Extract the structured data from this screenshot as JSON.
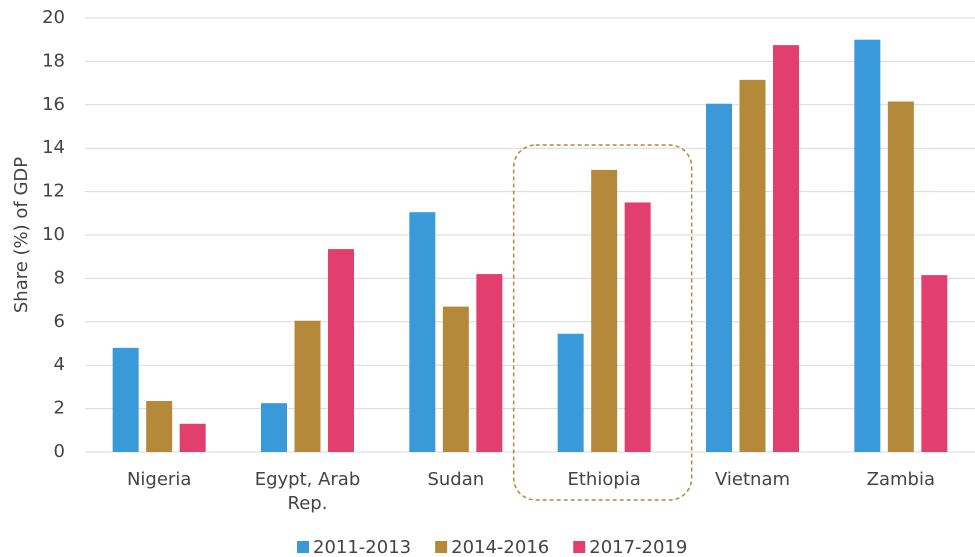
{
  "chart_data": {
    "type": "bar",
    "y_label": "Share (%) of GDP",
    "categories": [
      "Nigeria",
      "Egypt, Arab Rep.",
      "Sudan",
      "Ethiopia",
      "Vietnam",
      "Zambia"
    ],
    "series": [
      {
        "name": "2011-2013",
        "color": "#3a9ad9",
        "values": [
          4.8,
          2.25,
          11.05,
          5.45,
          16.05,
          19.0
        ]
      },
      {
        "name": "2014-2016",
        "color": "#b5893a",
        "values": [
          2.35,
          6.05,
          6.7,
          13.0,
          17.15,
          16.15
        ]
      },
      {
        "name": "2017-2019",
        "color": "#e23f6e",
        "values": [
          1.3,
          9.35,
          8.2,
          11.5,
          18.75,
          8.15
        ]
      }
    ],
    "ylim": [
      0,
      20
    ],
    "yticks": [
      0,
      2,
      4,
      6,
      8,
      10,
      12,
      14,
      16,
      18,
      20
    ],
    "grid": true,
    "highlight_category": 2
  }
}
